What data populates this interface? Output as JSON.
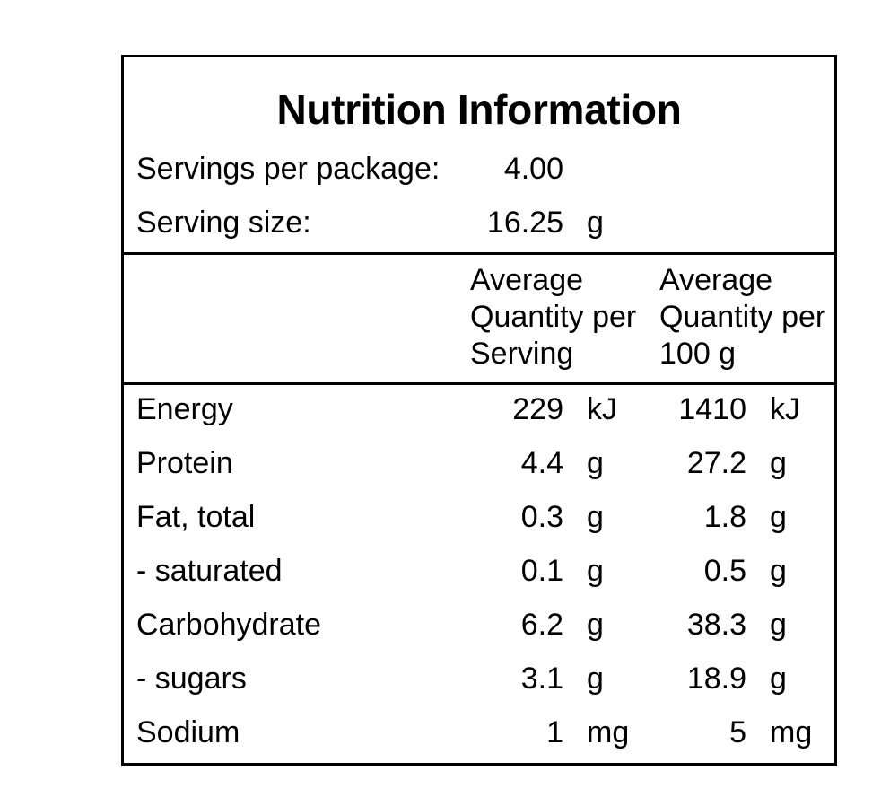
{
  "title": "Nutrition Information",
  "servings": {
    "per_package_label": "Servings per package:",
    "per_package_value": "4.00",
    "size_label": "Serving size:",
    "size_value": "16.25",
    "size_unit": "g"
  },
  "columns": {
    "per_serving": [
      "Average",
      "Quantity per",
      "Serving"
    ],
    "per_100g": [
      "Average",
      "Quantity per",
      "100 g"
    ]
  },
  "rows": [
    {
      "label": "Energy",
      "serving": "229",
      "serving_unit": "kJ",
      "per100": "1410",
      "per100_unit": "kJ"
    },
    {
      "label": "Protein",
      "serving": "4.4",
      "serving_unit": "g",
      "per100": "27.2",
      "per100_unit": "g"
    },
    {
      "label": "Fat, total",
      "serving": "0.3",
      "serving_unit": "g",
      "per100": "1.8",
      "per100_unit": "g"
    },
    {
      "label": "- saturated",
      "serving": "0.1",
      "serving_unit": "g",
      "per100": "0.5",
      "per100_unit": "g"
    },
    {
      "label": "Carbohydrate",
      "serving": "6.2",
      "serving_unit": "g",
      "per100": "38.3",
      "per100_unit": "g"
    },
    {
      "label": "- sugars",
      "serving": "3.1",
      "serving_unit": "g",
      "per100": "18.9",
      "per100_unit": "g"
    },
    {
      "label": "Sodium",
      "serving": "1",
      "serving_unit": "mg",
      "per100": "5",
      "per100_unit": "mg"
    }
  ]
}
